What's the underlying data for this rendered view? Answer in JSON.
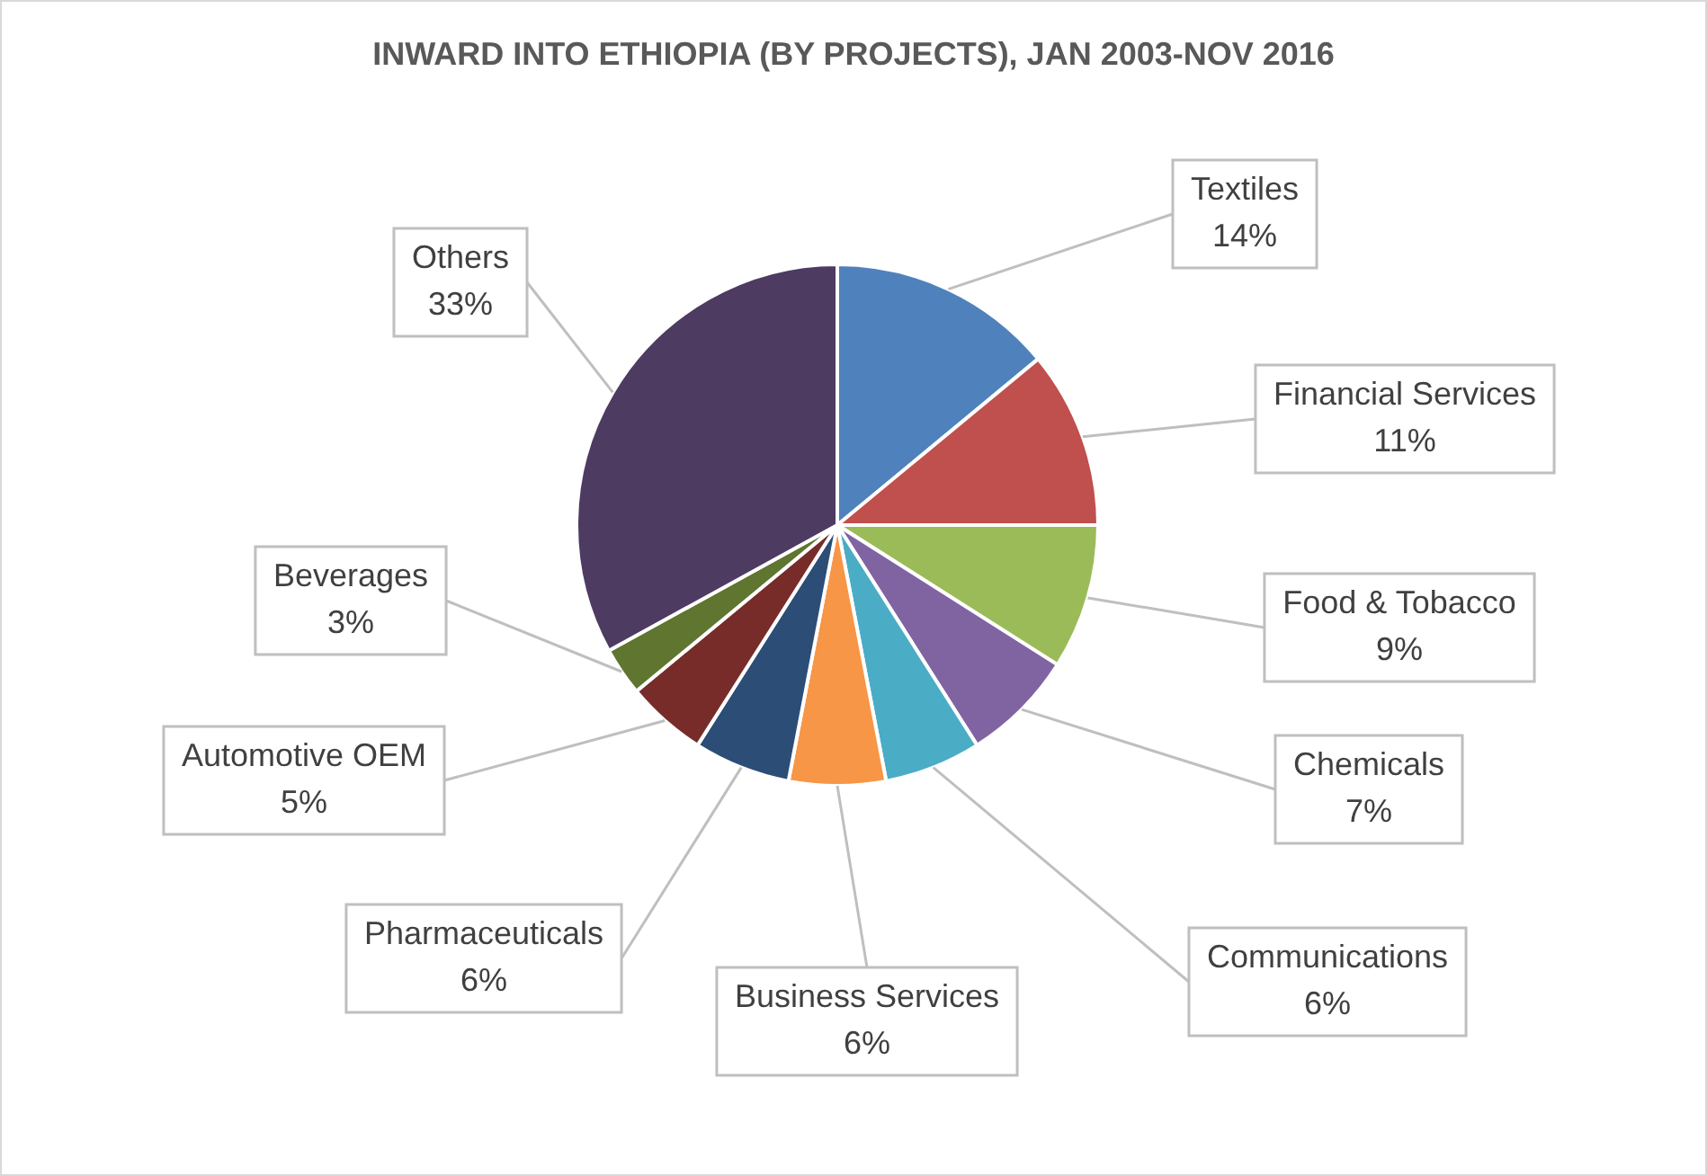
{
  "chart_data": {
    "type": "pie",
    "title": "INWARD INTO ETHIOPIA (BY PROJECTS), JAN 2003-NOV 2016",
    "categories": [
      "Textiles",
      "Financial Services",
      "Food & Tobacco",
      "Chemicals",
      "Communications",
      "Business Services",
      "Pharmaceuticals",
      "Automotive OEM",
      "Beverages",
      "Others"
    ],
    "values": [
      14,
      11,
      9,
      7,
      6,
      6,
      6,
      5,
      3,
      33
    ],
    "value_labels": [
      "14%",
      "11%",
      "9%",
      "7%",
      "6%",
      "6%",
      "6%",
      "5%",
      "3%",
      "33%"
    ],
    "colors": [
      "#4f81bd",
      "#c0504d",
      "#9bbb59",
      "#8064a2",
      "#4bacc6",
      "#f79646",
      "#2c4d75",
      "#772c2a",
      "#5f7530",
      "#4d3b62"
    ],
    "legend": false
  }
}
